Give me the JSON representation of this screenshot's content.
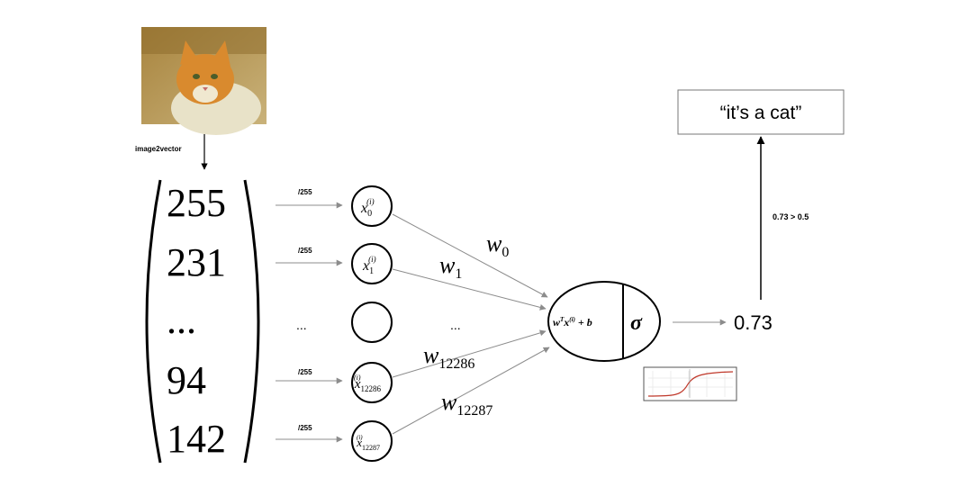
{
  "input_image": {
    "alt": "cat photo"
  },
  "image2vector_label": "image2vector",
  "vector_values": [
    "255",
    "231",
    "...",
    "94",
    "142"
  ],
  "normalize_labels": [
    "/255",
    "/255",
    "...",
    "/255",
    "/255"
  ],
  "nodes": [
    {
      "var": "x",
      "sub": "0",
      "sup": "(i)"
    },
    {
      "var": "x",
      "sub": "1",
      "sup": "(i)"
    },
    {
      "var": "",
      "sub": "",
      "sup": ""
    },
    {
      "var": "x",
      "sub": "12286",
      "sup": "(i)"
    },
    {
      "var": "x",
      "sub": "12287",
      "sup": "(i)"
    }
  ],
  "weights": [
    {
      "var": "w",
      "sub": "0"
    },
    {
      "var": "w",
      "sub": "1"
    },
    {
      "var": "",
      "sub": "..."
    },
    {
      "var": "w",
      "sub": "12286"
    },
    {
      "var": "w",
      "sub": "12287"
    }
  ],
  "neuron": {
    "linear": {
      "w": "w",
      "T": "T",
      "x": "x",
      "sup": "(i)",
      "rest": " + b"
    },
    "activation": "σ"
  },
  "output_value": "0.73",
  "threshold_label": "0.73 > 0.5",
  "prediction": "“it’s a cat”",
  "colors": {
    "arrow": "#8c8c8c",
    "stroke": "#000000",
    "sigmoid_curve": "#c0392b"
  }
}
